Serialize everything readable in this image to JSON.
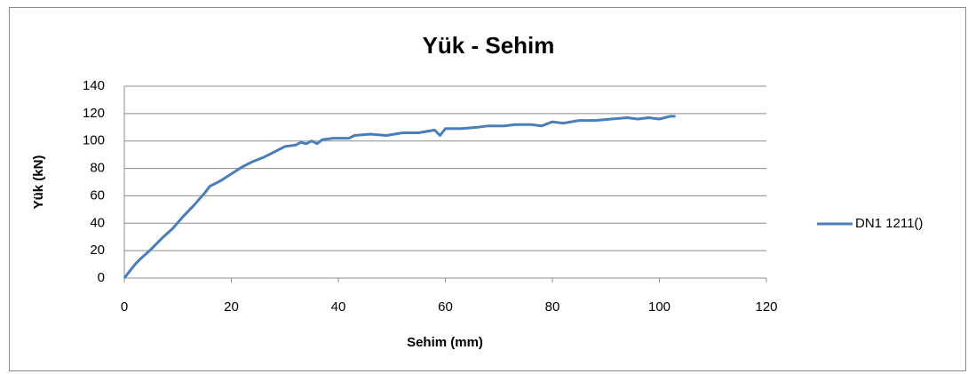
{
  "chart_data": {
    "type": "line",
    "title": "Yük - Sehim",
    "x_label": "Sehim (mm)",
    "y_label": "Yük (kN)",
    "x": [
      0,
      1,
      2,
      3,
      5,
      7,
      9,
      11,
      13,
      15,
      16,
      18,
      20,
      22,
      24,
      26,
      28,
      30,
      32,
      33,
      34,
      35,
      36,
      37,
      39,
      42,
      43,
      46,
      49,
      52,
      55,
      58,
      59,
      60,
      63,
      66,
      68,
      71,
      73,
      76,
      78,
      80,
      82,
      85,
      88,
      91,
      94,
      96,
      98,
      100,
      102,
      103
    ],
    "series": [
      {
        "name": "DN1 1211()",
        "color": "#4a7ebb",
        "values": [
          0,
          5,
          10,
          14,
          21,
          29,
          36,
          45,
          53,
          62,
          67,
          71,
          76,
          81,
          85,
          88,
          92,
          96,
          97,
          99,
          98,
          100,
          98,
          101,
          102,
          102,
          104,
          105,
          104,
          106,
          106,
          108,
          104,
          109,
          109,
          110,
          111,
          111,
          112,
          112,
          111,
          114,
          113,
          115,
          115,
          116,
          117,
          116,
          117,
          116,
          118,
          118
        ]
      }
    ],
    "xlim": [
      0,
      120
    ],
    "xticks": [
      0,
      20,
      40,
      60,
      80,
      100,
      120
    ],
    "ylim": [
      0,
      140
    ],
    "yticks": [
      0,
      20,
      40,
      60,
      80,
      100,
      120,
      140
    ],
    "grid": true,
    "legend": "right"
  }
}
